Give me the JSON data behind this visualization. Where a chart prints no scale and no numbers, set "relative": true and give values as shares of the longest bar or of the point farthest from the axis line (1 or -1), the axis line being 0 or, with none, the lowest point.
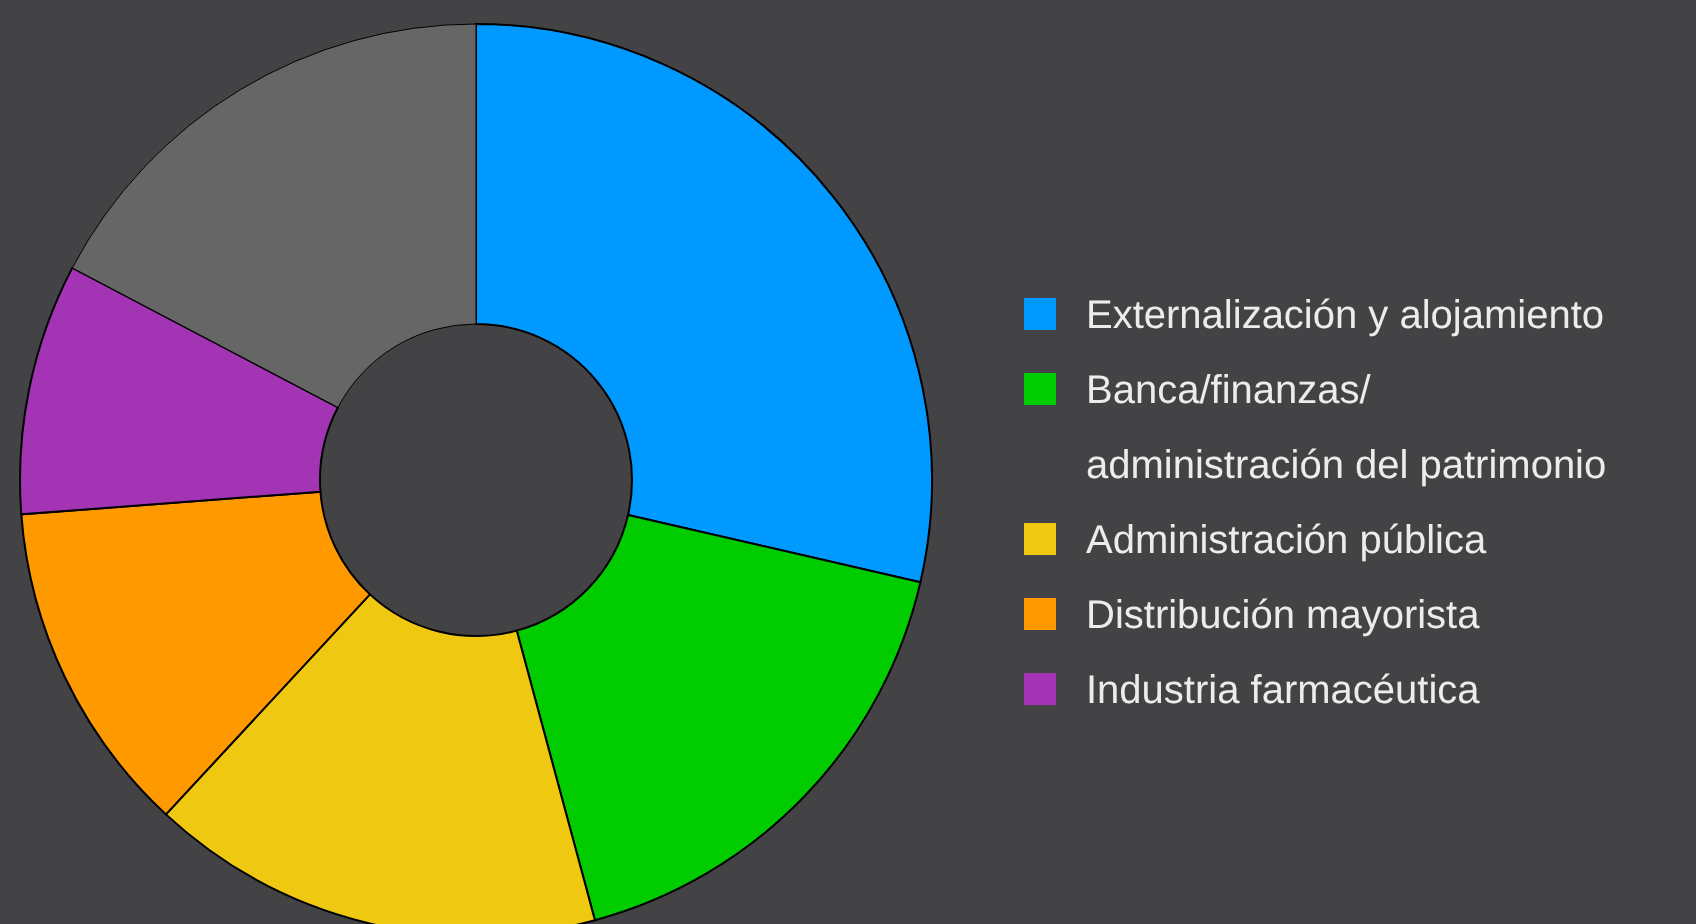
{
  "chart_data": {
    "type": "donut",
    "relative": true,
    "legend": "right",
    "categories": [
      "Externalización y alojamiento",
      "Banca/finanzas/ administración del patrimonio",
      "Administración pública",
      "Distribución mayorista",
      "Industria farmacéutica",
      null
    ],
    "values": [
      28.6,
      17.2,
      16.1,
      11.9,
      8.9,
      17.3
    ],
    "colors": [
      "#0099ff",
      "#00cc00",
      "#eec811",
      "#ff9900",
      "#a335b5",
      "#666666"
    ]
  }
}
